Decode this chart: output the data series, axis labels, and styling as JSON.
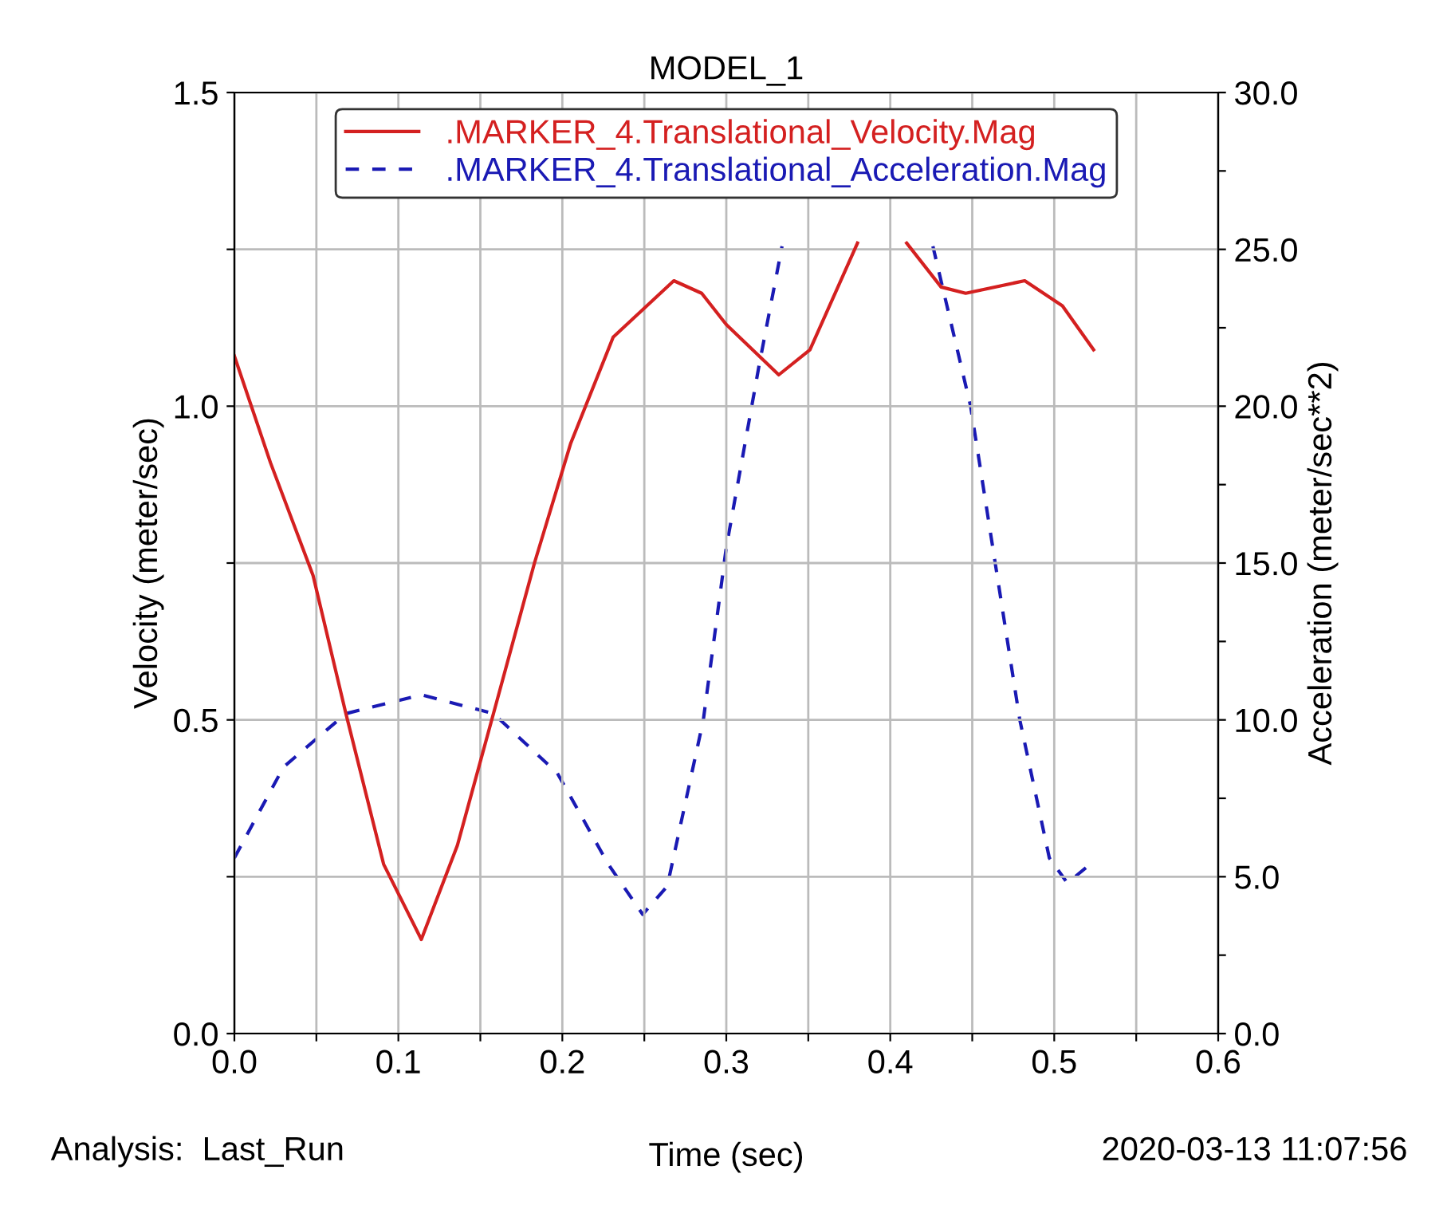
{
  "chart_data": {
    "type": "line",
    "title": "MODEL_1",
    "xlabel": "Time (sec)",
    "ylabel": "Velocity (meter/sec)",
    "y2label": "Acceleration (meter/sec**2)",
    "annotations": [
      "Analysis:  Last_Run",
      "2020-03-13 11:07:56"
    ],
    "xlim": [
      0.0,
      0.6
    ],
    "xticks": [
      {
        "value": 0.0,
        "label": "0.0"
      },
      {
        "value": 0.05,
        "label": null
      },
      {
        "value": 0.1,
        "label": "0.1"
      },
      {
        "value": 0.15,
        "label": null
      },
      {
        "value": 0.2,
        "label": "0.2"
      },
      {
        "value": 0.25,
        "label": null
      },
      {
        "value": 0.3,
        "label": "0.3"
      },
      {
        "value": 0.35,
        "label": null
      },
      {
        "value": 0.4,
        "label": "0.4"
      },
      {
        "value": 0.45,
        "label": null
      },
      {
        "value": 0.5,
        "label": "0.5"
      },
      {
        "value": 0.55,
        "label": null
      },
      {
        "value": 0.6,
        "label": "0.6"
      }
    ],
    "ylim": [
      0.0,
      1.5
    ],
    "yticks": [
      {
        "value": 0.0,
        "label": "0.0"
      },
      {
        "value": 0.25,
        "label": null
      },
      {
        "value": 0.5,
        "label": "0.5"
      },
      {
        "value": 0.75,
        "label": null
      },
      {
        "value": 1.0,
        "label": "1.0"
      },
      {
        "value": 1.25,
        "label": null
      },
      {
        "value": 1.5,
        "label": "1.5"
      }
    ],
    "y2lim": [
      0.0,
      30.0
    ],
    "y2ticks": [
      {
        "value": 0.0,
        "label": "0.0"
      },
      {
        "value": 2.5,
        "label": null
      },
      {
        "value": 5.0,
        "label": "5.0"
      },
      {
        "value": 7.5,
        "label": null
      },
      {
        "value": 10.0,
        "label": "10.0"
      },
      {
        "value": 12.5,
        "label": null
      },
      {
        "value": 15.0,
        "label": "15.0"
      },
      {
        "value": 17.5,
        "label": null
      },
      {
        "value": 20.0,
        "label": "20.0"
      },
      {
        "value": 22.5,
        "label": null
      },
      {
        "value": 25.0,
        "label": "25.0"
      },
      {
        "value": 27.5,
        "label": null
      },
      {
        "value": 30.0,
        "label": "30.0"
      }
    ],
    "grid": true,
    "legend": "top",
    "series": [
      {
        "name": ".MARKER_4.Translational_Velocity.Mag",
        "color": "#d42020",
        "line_style": "solid",
        "x": [
          0.0,
          0.022,
          0.048,
          0.068,
          0.091,
          0.114,
          0.136,
          0.158,
          0.183,
          0.205,
          0.231,
          0.268,
          0.285,
          0.3,
          0.332,
          0.351,
          0.38,
          0.395,
          0.41,
          0.431,
          0.446,
          0.482,
          0.505,
          0.524
        ],
        "values": [
          1.08,
          0.91,
          0.73,
          0.51,
          0.27,
          0.15,
          0.3,
          0.51,
          0.75,
          0.94,
          1.11,
          1.2,
          1.18,
          1.13,
          1.05,
          1.09,
          1.26,
          null,
          1.26,
          1.19,
          1.18,
          1.2,
          1.16,
          1.09
        ]
      },
      {
        "name": ".MARKER_4.Translational_Acceleration.Mag",
        "color": "#1a1ab4",
        "line_style": "dashed",
        "axis": "y2",
        "x": [
          0.0,
          0.03,
          0.068,
          0.114,
          0.158,
          0.197,
          0.228,
          0.249,
          0.264,
          0.286,
          0.3,
          0.32,
          0.334,
          0.38,
          0.426,
          0.449,
          0.464,
          0.479,
          0.497,
          0.508,
          0.522
        ],
        "values": [
          5.6,
          8.5,
          10.2,
          10.8,
          10.2,
          8.3,
          5.4,
          3.8,
          4.7,
          10.0,
          15.5,
          21.3,
          25.1,
          null,
          25.1,
          20.0,
          15.0,
          10.0,
          5.6,
          4.8,
          5.4
        ]
      }
    ]
  }
}
